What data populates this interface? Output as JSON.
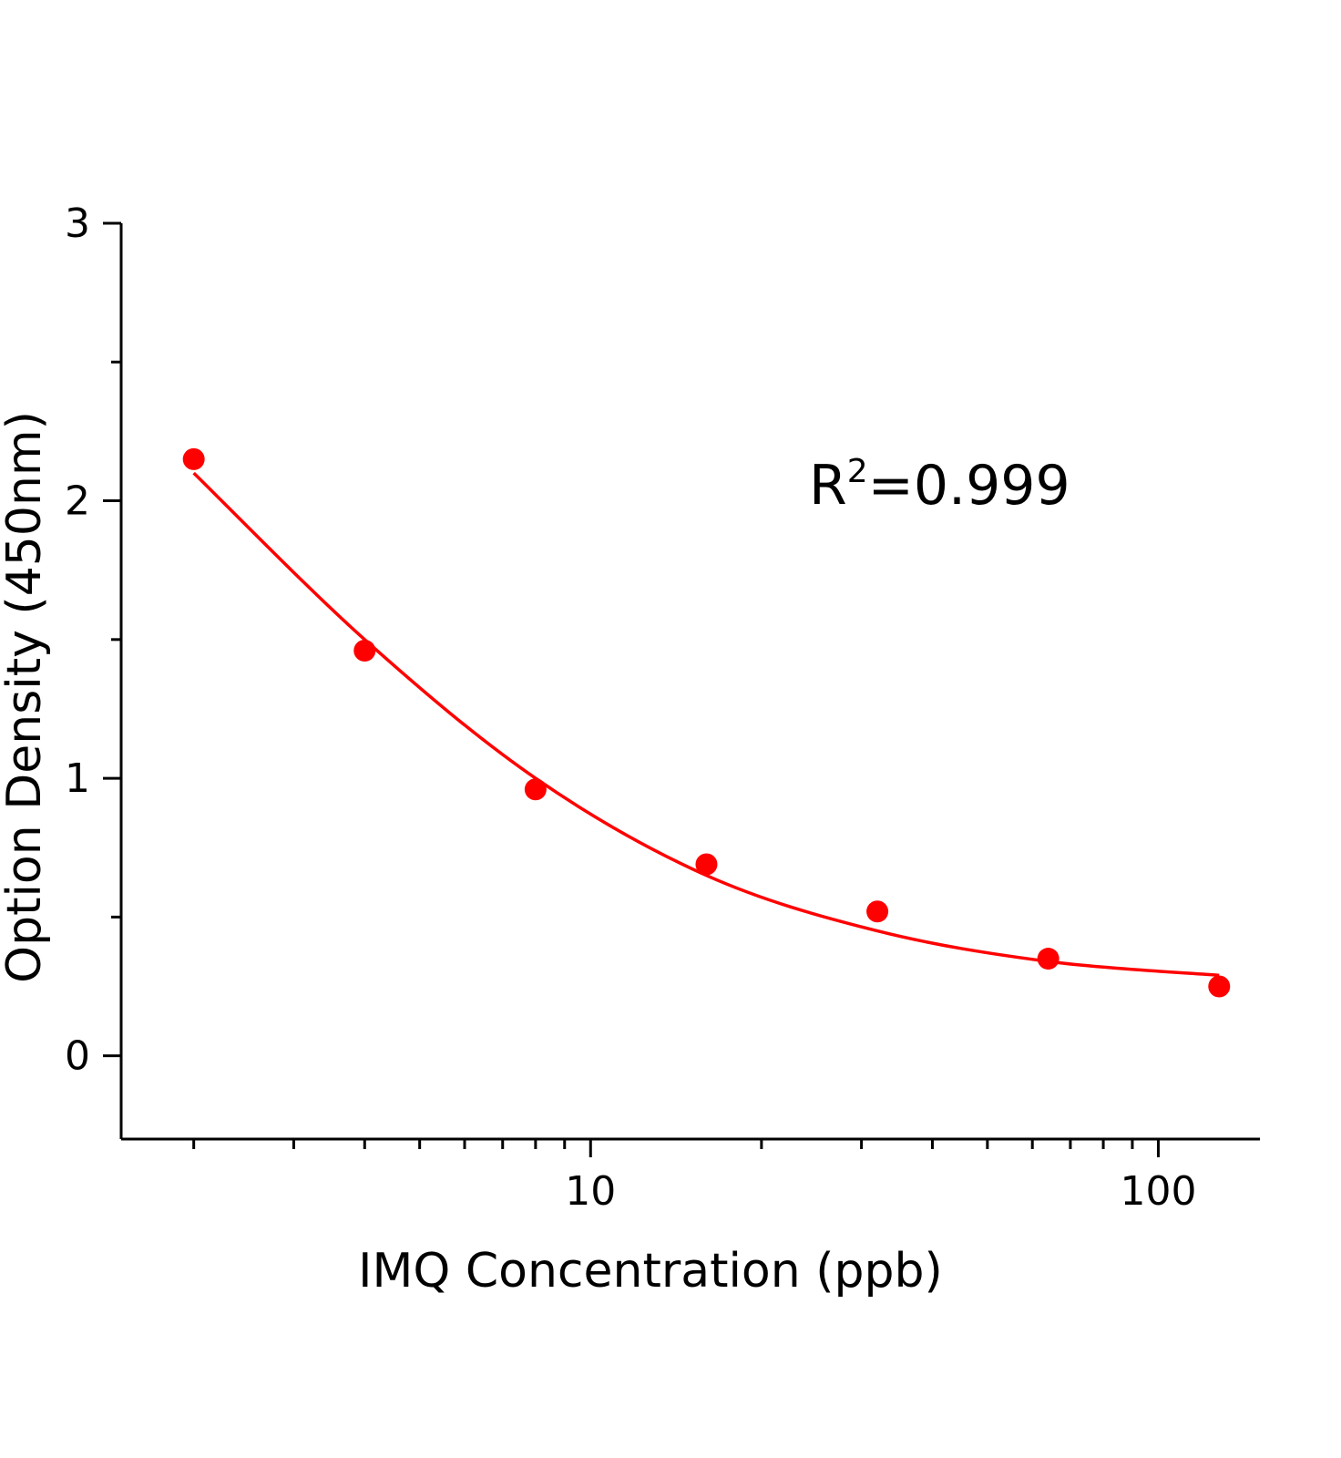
{
  "chart_data": {
    "type": "scatter",
    "title": "",
    "xlabel": "IMQ Concentration (ppb)",
    "ylabel": "Option Density (450nm)",
    "xscale": "log",
    "xlim": [
      1.49,
      151
    ],
    "ylim": [
      -0.3,
      3
    ],
    "xticks": [
      10,
      100
    ],
    "xtick_labels": [
      "10",
      "100"
    ],
    "yticks": [
      0,
      1,
      2,
      3
    ],
    "ytick_labels": [
      "0",
      "1",
      "2",
      "3"
    ],
    "grid": false,
    "color": "#ff0000",
    "annotation": {
      "base": "R",
      "sup": "2",
      "rest": "=0.999"
    },
    "points": {
      "x": [
        2,
        4,
        8,
        16,
        32,
        64,
        128
      ],
      "y": [
        2.15,
        1.46,
        0.96,
        0.69,
        0.52,
        0.35,
        0.25
      ]
    },
    "fit_curve": {
      "x": [
        2,
        4,
        8,
        16,
        32,
        64,
        128
      ],
      "y": [
        2.1,
        1.5,
        1.0,
        0.65,
        0.45,
        0.34,
        0.29
      ]
    }
  }
}
